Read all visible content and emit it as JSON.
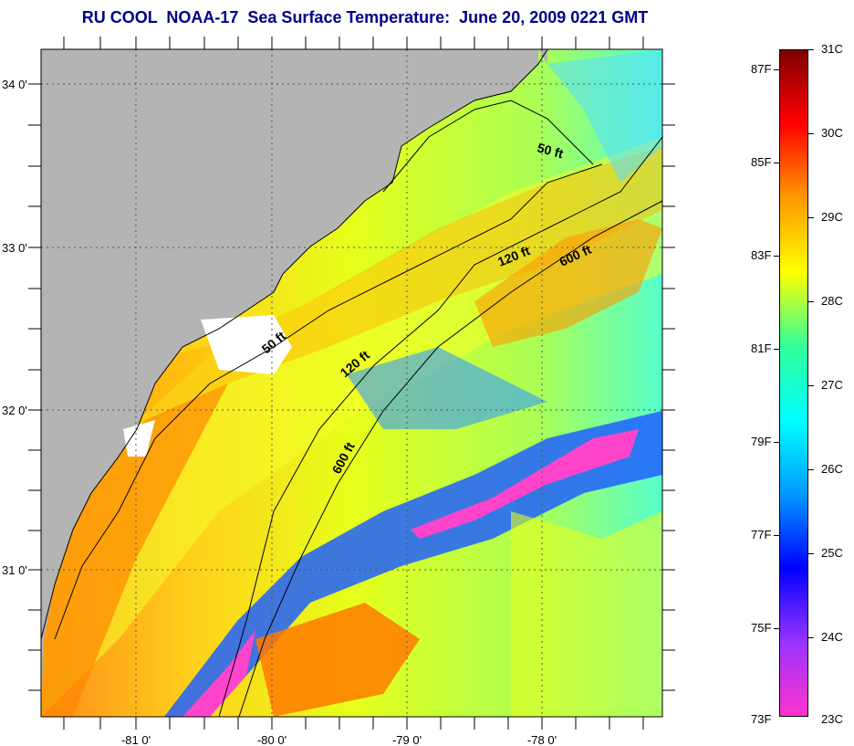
{
  "title": "RU COOL  NOAA-17  Sea Surface Temperature:  June 20, 2009 0221 GMT",
  "axes": {
    "lon_ticks": [
      "-81 0'",
      "-80 0'",
      "-79 0'",
      "-78 0'"
    ],
    "lat_ticks": [
      "34 0'",
      "33 0'",
      "32 0'",
      "31 0'"
    ]
  },
  "contours": [
    {
      "label": "50 ft"
    },
    {
      "label": "50 ft"
    },
    {
      "label": "120 ft"
    },
    {
      "label": "120 ft"
    },
    {
      "label": "600 ft"
    },
    {
      "label": "600 ft"
    }
  ],
  "colorbar": {
    "celsius": [
      "31C",
      "30C",
      "29C",
      "28C",
      "27C",
      "26C",
      "25C",
      "24C",
      "23C"
    ],
    "fahrenheit": [
      "87F",
      "85F",
      "83F",
      "81F",
      "79F",
      "77F",
      "75F",
      "73F"
    ],
    "colors": [
      "#ff33cc",
      "#9933ff",
      "#0000ff",
      "#0099ff",
      "#00ffff",
      "#33ff99",
      "#ffff00",
      "#ff9900",
      "#ff0000",
      "#800000"
    ]
  },
  "colors": {
    "land": "#b4b4b4",
    "title": "#00008b"
  }
}
